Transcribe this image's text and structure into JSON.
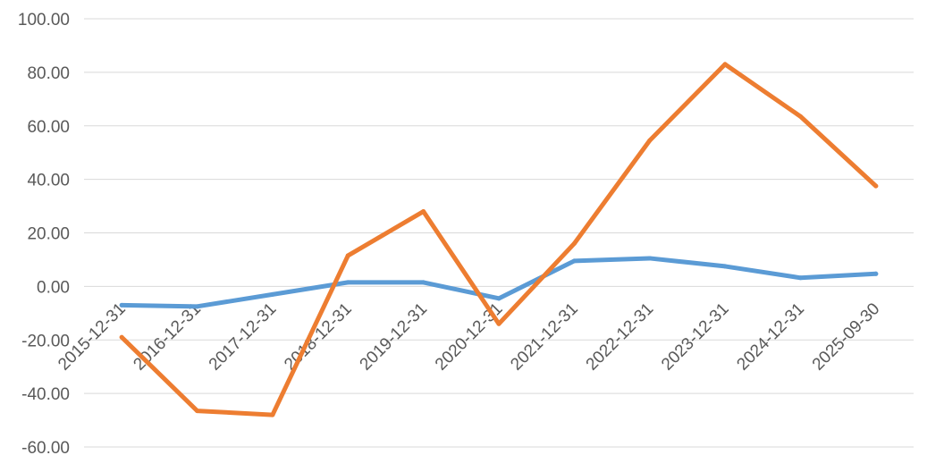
{
  "chart_data": {
    "type": "line",
    "categories": [
      "2015-12-31",
      "2016-12-31",
      "2017-12-31",
      "2018-12-31",
      "2019-12-31",
      "2020-12-31",
      "2021-12-31",
      "2022-12-31",
      "2023-12-31",
      "2024-12-31",
      "2025-09-30"
    ],
    "series": [
      {
        "color": "#5b9bd5",
        "values": [
          -7,
          -7.5,
          -3,
          1.5,
          1.5,
          -4.5,
          9.5,
          10.5,
          7.5,
          3.2,
          4.7
        ]
      },
      {
        "color": "#ed7d31",
        "values": [
          -19,
          -46.5,
          -48,
          11.5,
          28,
          -14,
          16,
          54.5,
          83,
          63.5,
          37.5
        ]
      }
    ],
    "yticks": [
      "100.00",
      "80.00",
      "60.00",
      "40.00",
      "20.00",
      "0.00",
      "-20.00",
      "-40.00",
      "-60.00"
    ],
    "ylim": [
      -60,
      100
    ],
    "grid": true,
    "legend": "none",
    "title": "",
    "xlabel": "",
    "ylabel": ""
  }
}
